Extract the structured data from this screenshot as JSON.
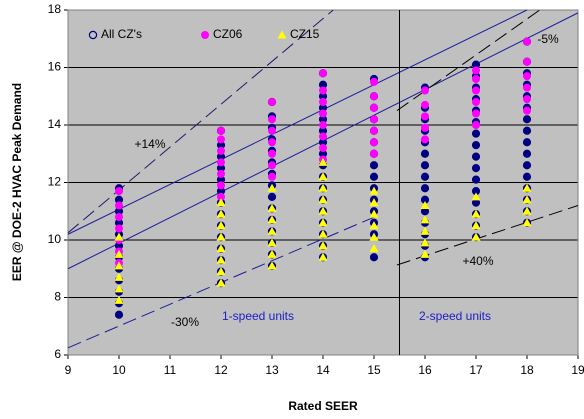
{
  "chart_data": {
    "type": "scatter",
    "x_label": "Rated SEER",
    "y_label": "EER @ DOE-2 HVAC Peak Demand",
    "xlim": [
      9,
      19
    ],
    "ylim": [
      6,
      18
    ],
    "xticks": [
      9,
      10,
      11,
      12,
      13,
      14,
      15,
      16,
      17,
      18,
      19
    ],
    "yticks": [
      6,
      8,
      10,
      12,
      14,
      16,
      18
    ],
    "grid": true,
    "legend": "top-left",
    "divider_x": 15.5,
    "series": [
      {
        "name": "All CZ's",
        "color": "#000080",
        "marker": "circle",
        "x": [
          10,
          10,
          10,
          10,
          10,
          10,
          10,
          10,
          10,
          10,
          10,
          10,
          12,
          12,
          12,
          12,
          12,
          12,
          12,
          12,
          12,
          12,
          12,
          12,
          12,
          12,
          13,
          13,
          13,
          13,
          13,
          13,
          13,
          13,
          13,
          13,
          13,
          13,
          13,
          13,
          13,
          14,
          14,
          14,
          14,
          14,
          14,
          14,
          14,
          14,
          14,
          14,
          14,
          14,
          14,
          14,
          14,
          14,
          15,
          15,
          15,
          15,
          15,
          15,
          15,
          15,
          15,
          15,
          15,
          15,
          15,
          15,
          15,
          16,
          16,
          16,
          16,
          16,
          16,
          16,
          16,
          16,
          16,
          16,
          16,
          16,
          16,
          16,
          17,
          17,
          17,
          17,
          17,
          17,
          17,
          17,
          17,
          17,
          17,
          17,
          17,
          17,
          17,
          17,
          18,
          18,
          18,
          18,
          18,
          18,
          18,
          18,
          18,
          18,
          18,
          18,
          18,
          18,
          18,
          18
        ],
        "values": [
          7.4,
          7.8,
          8.2,
          8.6,
          9.0,
          9.4,
          9.8,
          10.2,
          10.6,
          11.0,
          11.4,
          11.8,
          8.5,
          8.9,
          9.3,
          9.7,
          10.1,
          10.5,
          10.9,
          11.3,
          11.7,
          12.1,
          12.5,
          12.9,
          13.3,
          13.8,
          9.1,
          9.5,
          9.9,
          10.3,
          10.7,
          11.1,
          11.5,
          11.9,
          12.3,
          12.7,
          13.1,
          13.5,
          13.9,
          14.3,
          14.8,
          9.4,
          9.8,
          10.2,
          10.6,
          11.0,
          11.4,
          11.8,
          12.2,
          12.6,
          13.0,
          13.4,
          13.8,
          14.2,
          14.6,
          15.0,
          15.4,
          15.8,
          9.4,
          10.2,
          10.6,
          11.0,
          11.4,
          11.8,
          12.2,
          12.6,
          13.0,
          13.4,
          13.8,
          14.2,
          14.6,
          15.0,
          15.6,
          9.4,
          9.8,
          10.2,
          10.6,
          11.0,
          11.4,
          11.8,
          12.2,
          12.6,
          13.0,
          13.4,
          13.8,
          14.2,
          14.6,
          15.3,
          10.1,
          10.5,
          10.9,
          11.3,
          11.7,
          12.1,
          12.5,
          12.9,
          13.3,
          13.7,
          14.1,
          14.5,
          14.9,
          15.3,
          15.7,
          16.1,
          10.6,
          11.0,
          11.4,
          11.8,
          12.2,
          12.6,
          13.0,
          13.4,
          13.8,
          14.2,
          14.6,
          15.0,
          15.4,
          15.8,
          16.2,
          16.9
        ]
      },
      {
        "name": "CZ06",
        "color": "#ff00ff",
        "marker": "dot",
        "x": [
          10,
          10,
          10,
          10,
          10,
          10,
          10,
          12,
          12,
          12,
          12,
          12,
          12,
          12,
          13,
          13,
          13,
          13,
          13,
          13,
          13,
          14,
          14,
          14,
          14,
          14,
          14,
          14,
          14,
          15,
          15,
          15,
          15,
          15,
          15,
          15,
          16,
          16,
          16,
          16,
          16,
          17,
          17,
          17,
          17,
          17,
          17,
          18,
          18,
          18,
          18,
          18,
          18
        ],
        "values": [
          9.2,
          9.6,
          10.0,
          10.4,
          10.8,
          11.2,
          11.7,
          11.5,
          11.9,
          12.3,
          12.7,
          13.1,
          13.5,
          13.8,
          12.2,
          12.6,
          13.0,
          13.4,
          13.8,
          14.2,
          14.8,
          12.8,
          13.2,
          13.6,
          14.0,
          14.4,
          14.8,
          15.2,
          15.8,
          13.0,
          13.4,
          13.8,
          14.2,
          14.6,
          15.0,
          15.5,
          13.5,
          13.9,
          14.3,
          14.7,
          15.2,
          14.0,
          14.4,
          14.8,
          15.2,
          15.6,
          15.9,
          14.5,
          14.9,
          15.3,
          15.7,
          16.2,
          16.9
        ]
      },
      {
        "name": "CZ15",
        "color": "#ffff00",
        "marker": "triangle",
        "x": [
          10,
          10,
          10,
          10,
          10,
          10,
          12,
          12,
          12,
          12,
          12,
          12,
          12,
          12,
          13,
          13,
          13,
          13,
          13,
          13,
          13,
          14,
          14,
          14,
          14,
          14,
          14,
          14,
          14,
          14,
          15,
          15,
          15,
          15,
          15,
          15,
          16,
          16,
          16,
          16,
          16,
          17,
          17,
          17,
          17,
          18,
          18,
          18,
          18
        ],
        "values": [
          7.9,
          8.3,
          8.7,
          9.1,
          9.5,
          10.1,
          8.5,
          8.9,
          9.3,
          9.7,
          10.1,
          10.5,
          10.9,
          11.3,
          9.1,
          9.5,
          9.9,
          10.3,
          10.7,
          11.1,
          11.8,
          9.4,
          9.8,
          10.2,
          10.6,
          11.0,
          11.4,
          11.8,
          12.2,
          12.7,
          9.7,
          10.1,
          10.5,
          10.9,
          11.3,
          11.7,
          9.5,
          9.9,
          10.3,
          10.7,
          11.2,
          10.1,
          10.5,
          10.9,
          11.5,
          10.6,
          11.0,
          11.4,
          11.8
        ]
      }
    ],
    "reference_lines": [
      {
        "x": [
          9,
          18
        ],
        "y": [
          10.2,
          18
        ],
        "style": "solid",
        "color": "#1c1c9c"
      },
      {
        "x": [
          9,
          19
        ],
        "y": [
          9.0,
          17.9
        ],
        "style": "solid",
        "color": "#1c1c9c"
      },
      {
        "x": [
          9,
          14.2
        ],
        "y": [
          10.25,
          18
        ],
        "style": "dashed",
        "color": "#1c1c6c"
      },
      {
        "x": [
          9,
          15.1
        ],
        "y": [
          6.25,
          10.87
        ],
        "style": "dashed",
        "color": "#1c1c9c"
      },
      {
        "x": [
          15.45,
          18.25
        ],
        "y": [
          14.5,
          18
        ],
        "style": "dashed",
        "color": "#000000"
      },
      {
        "x": [
          15.45,
          19
        ],
        "y": [
          9.13,
          11.2
        ],
        "style": "dashed",
        "color": "#000000"
      }
    ],
    "annotations": [
      "+14%",
      "-30%",
      "-5%",
      "+40%",
      "1-speed units",
      "2-speed units"
    ]
  }
}
